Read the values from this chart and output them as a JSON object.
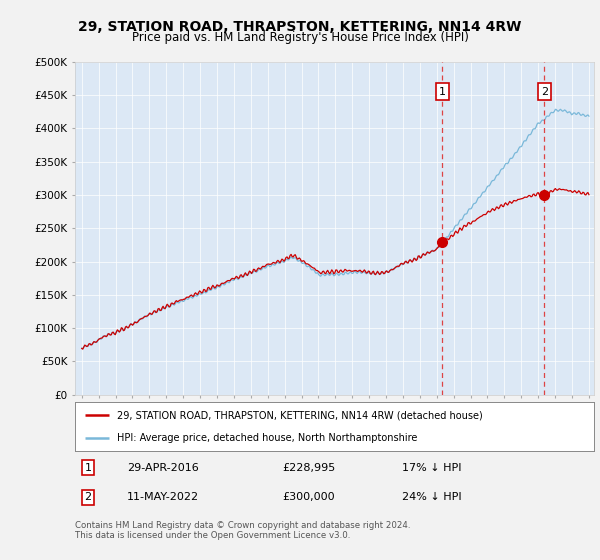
{
  "title": "29, STATION ROAD, THRAPSTON, KETTERING, NN14 4RW",
  "subtitle": "Price paid vs. HM Land Registry's House Price Index (HPI)",
  "background_color": "#f0f0f0",
  "plot_bg_color": "#dce8f5",
  "sale1_date": "29-APR-2016",
  "sale1_price": 228995,
  "sale1_pct": "17% ↓ HPI",
  "sale2_date": "11-MAY-2022",
  "sale2_price": 300000,
  "sale2_pct": "24% ↓ HPI",
  "legend_line1": "29, STATION ROAD, THRAPSTON, KETTERING, NN14 4RW (detached house)",
  "legend_line2": "HPI: Average price, detached house, North Northamptonshire",
  "footer": "Contains HM Land Registry data © Crown copyright and database right 2024.\nThis data is licensed under the Open Government Licence v3.0.",
  "hpi_color": "#7ab8d9",
  "property_color": "#cc0000",
  "dashed_line_color": "#dd4444",
  "marker_color": "#cc0000",
  "ylim": [
    0,
    500000
  ],
  "yticks": [
    0,
    50000,
    100000,
    150000,
    200000,
    250000,
    300000,
    350000,
    400000,
    450000,
    500000
  ],
  "sale1_year": 2016.33,
  "sale2_year": 2022.37,
  "xmin": 1995,
  "xmax": 2025
}
